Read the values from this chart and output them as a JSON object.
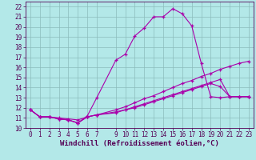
{
  "xlabel": "Windchill (Refroidissement éolien,°C)",
  "bg_color": "#b3e8e8",
  "grid_color": "#8bbcbc",
  "line_color": "#aa00aa",
  "xlim": [
    -0.5,
    23.5
  ],
  "ylim": [
    10,
    22.5
  ],
  "xticks": [
    0,
    1,
    2,
    3,
    4,
    5,
    6,
    7,
    9,
    10,
    11,
    12,
    13,
    14,
    15,
    16,
    17,
    18,
    19,
    20,
    21,
    22,
    23
  ],
  "xticklabels": [
    "0",
    "1",
    "2",
    "3",
    "4",
    "5",
    "6",
    "7",
    "9",
    "10",
    "11",
    "12",
    "13",
    "14",
    "15",
    "16",
    "17",
    "18",
    "19",
    "20",
    "21",
    "22",
    "23"
  ],
  "yticks": [
    10,
    11,
    12,
    13,
    14,
    15,
    16,
    17,
    18,
    19,
    20,
    21,
    22
  ],
  "line1_x": [
    0,
    1,
    2,
    3,
    4,
    5,
    6,
    7,
    9,
    10,
    11,
    12,
    13,
    14,
    15,
    16,
    17,
    18,
    19,
    20,
    21,
    22,
    23
  ],
  "line1_y": [
    11.8,
    11.1,
    11.1,
    10.9,
    10.8,
    10.5,
    11.2,
    13.0,
    16.7,
    17.3,
    19.1,
    19.9,
    21.0,
    21.0,
    21.8,
    21.3,
    20.1,
    16.4,
    13.1,
    13.0,
    13.1,
    13.1,
    13.1
  ],
  "line2_x": [
    0,
    1,
    2,
    3,
    4,
    5,
    6,
    7,
    9,
    10,
    11,
    12,
    13,
    14,
    15,
    16,
    17,
    18,
    19,
    20,
    21,
    22,
    23
  ],
  "line2_y": [
    11.8,
    11.1,
    11.1,
    11.0,
    10.9,
    10.8,
    11.1,
    11.3,
    11.8,
    12.1,
    12.5,
    12.9,
    13.2,
    13.6,
    14.0,
    14.4,
    14.7,
    15.1,
    15.4,
    15.8,
    16.1,
    16.4,
    16.6
  ],
  "line3_x": [
    0,
    1,
    2,
    3,
    4,
    5,
    6,
    7,
    9,
    10,
    11,
    12,
    13,
    14,
    15,
    16,
    17,
    18,
    19,
    20,
    21,
    22,
    23
  ],
  "line3_y": [
    11.8,
    11.1,
    11.1,
    10.9,
    10.8,
    10.5,
    11.1,
    11.3,
    11.6,
    11.8,
    12.1,
    12.4,
    12.7,
    13.0,
    13.3,
    13.6,
    13.9,
    14.2,
    14.5,
    14.8,
    13.1,
    13.1,
    13.1
  ],
  "line4_x": [
    0,
    1,
    2,
    3,
    4,
    5,
    6,
    7,
    9,
    10,
    11,
    12,
    13,
    14,
    15,
    16,
    17,
    18,
    19,
    20,
    21,
    22,
    23
  ],
  "line4_y": [
    11.8,
    11.1,
    11.1,
    10.9,
    10.8,
    10.5,
    11.1,
    11.3,
    11.5,
    11.8,
    12.0,
    12.3,
    12.6,
    12.9,
    13.2,
    13.5,
    13.8,
    14.1,
    14.4,
    14.1,
    13.1,
    13.1,
    13.1
  ],
  "tick_fontsize": 5.5,
  "xlabel_fontsize": 6.5,
  "xlabel_color": "#550055",
  "tick_color": "#550055"
}
